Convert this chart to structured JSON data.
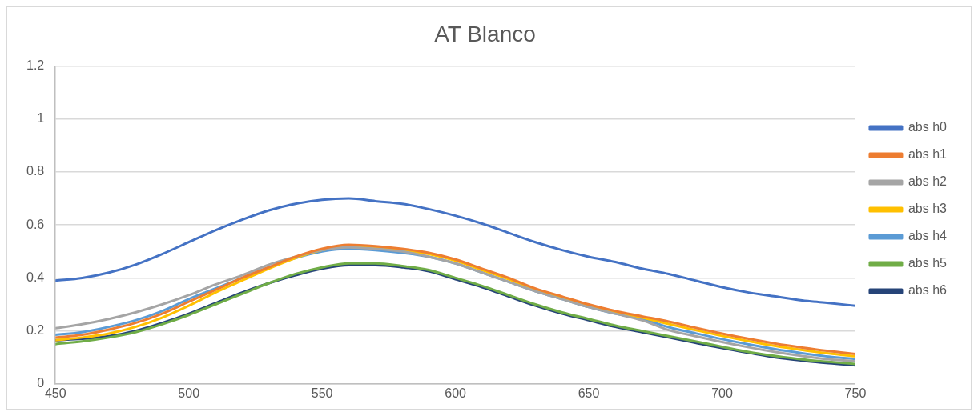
{
  "chart_data": {
    "type": "line",
    "title": "AT Blanco",
    "x": [
      450,
      460,
      470,
      480,
      490,
      500,
      510,
      520,
      530,
      540,
      550,
      560,
      570,
      580,
      590,
      600,
      610,
      620,
      630,
      640,
      650,
      660,
      670,
      680,
      690,
      700,
      710,
      720,
      730,
      740,
      750
    ],
    "xlim": [
      450,
      750
    ],
    "xticks": [
      450,
      500,
      550,
      600,
      650,
      700,
      750
    ],
    "ylim": [
      0,
      1.2
    ],
    "yticks": [
      0,
      0.2,
      0.4,
      0.6,
      0.8,
      1,
      1.2
    ],
    "grid": "y",
    "legend": "right",
    "marker": "none",
    "line_style": "solid",
    "series": [
      {
        "name": "abs h0",
        "color": "#4472c4",
        "values": [
          0.39,
          0.4,
          0.42,
          0.45,
          0.49,
          0.535,
          0.58,
          0.62,
          0.655,
          0.68,
          0.695,
          0.7,
          0.69,
          0.68,
          0.66,
          0.635,
          0.605,
          0.57,
          0.535,
          0.505,
          0.48,
          0.46,
          0.435,
          0.415,
          0.39,
          0.365,
          0.345,
          0.33,
          0.315,
          0.305,
          0.295
        ]
      },
      {
        "name": "abs h1",
        "color": "#ed7d31",
        "values": [
          0.175,
          0.185,
          0.205,
          0.23,
          0.265,
          0.31,
          0.355,
          0.4,
          0.44,
          0.48,
          0.51,
          0.525,
          0.52,
          0.51,
          0.495,
          0.47,
          0.435,
          0.4,
          0.36,
          0.33,
          0.3,
          0.275,
          0.255,
          0.235,
          0.212,
          0.19,
          0.17,
          0.152,
          0.137,
          0.124,
          0.113
        ]
      },
      {
        "name": "abs h2",
        "color": "#a5a5a5",
        "values": [
          0.21,
          0.225,
          0.245,
          0.27,
          0.3,
          0.335,
          0.375,
          0.41,
          0.45,
          0.48,
          0.505,
          0.515,
          0.51,
          0.5,
          0.48,
          0.455,
          0.42,
          0.385,
          0.35,
          0.32,
          0.29,
          0.265,
          0.24,
          0.203,
          0.18,
          0.158,
          0.138,
          0.12,
          0.105,
          0.093,
          0.085
        ]
      },
      {
        "name": "abs h3",
        "color": "#ffc000",
        "values": [
          0.165,
          0.175,
          0.19,
          0.215,
          0.25,
          0.295,
          0.345,
          0.39,
          0.435,
          0.475,
          0.505,
          0.52,
          0.515,
          0.505,
          0.49,
          0.465,
          0.43,
          0.395,
          0.355,
          0.325,
          0.295,
          0.27,
          0.25,
          0.226,
          0.203,
          0.181,
          0.161,
          0.143,
          0.128,
          0.115,
          0.104
        ]
      },
      {
        "name": "abs h4",
        "color": "#5b9bd5",
        "values": [
          0.185,
          0.195,
          0.215,
          0.24,
          0.275,
          0.32,
          0.36,
          0.4,
          0.44,
          0.475,
          0.5,
          0.51,
          0.505,
          0.495,
          0.48,
          0.455,
          0.42,
          0.385,
          0.35,
          0.32,
          0.29,
          0.265,
          0.245,
          0.214,
          0.191,
          0.169,
          0.149,
          0.131,
          0.116,
          0.103,
          0.094
        ]
      },
      {
        "name": "abs h5",
        "color": "#70ad47",
        "values": [
          0.15,
          0.16,
          0.175,
          0.195,
          0.225,
          0.26,
          0.3,
          0.34,
          0.38,
          0.415,
          0.44,
          0.455,
          0.455,
          0.445,
          0.43,
          0.4,
          0.37,
          0.335,
          0.3,
          0.27,
          0.245,
          0.22,
          0.2,
          0.18,
          0.16,
          0.14,
          0.12,
          0.105,
          0.092,
          0.083,
          0.075
        ]
      },
      {
        "name": "abs h6",
        "color": "#264478",
        "values": [
          0.165,
          0.17,
          0.18,
          0.2,
          0.23,
          0.265,
          0.305,
          0.345,
          0.38,
          0.41,
          0.435,
          0.448,
          0.448,
          0.44,
          0.425,
          0.395,
          0.365,
          0.33,
          0.295,
          0.265,
          0.24,
          0.215,
          0.195,
          0.175,
          0.155,
          0.135,
          0.117,
          0.1,
          0.088,
          0.078,
          0.07
        ]
      }
    ]
  }
}
